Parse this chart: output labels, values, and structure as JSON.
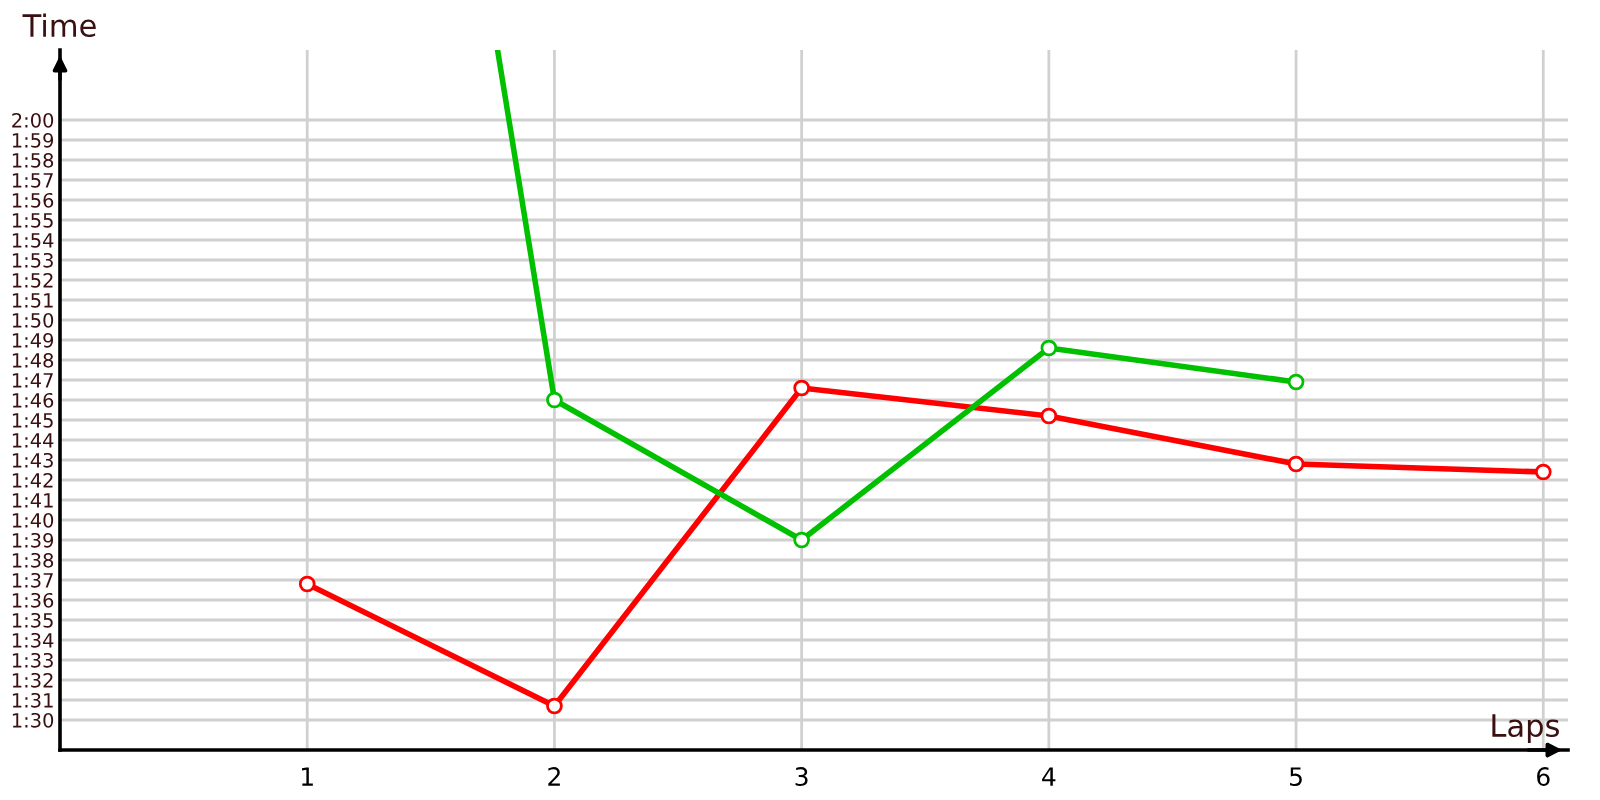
{
  "chart_data": {
    "type": "line",
    "ylabel": "Time",
    "xlabel": "Laps",
    "x": [
      1,
      2,
      3,
      4,
      5,
      6
    ],
    "series": [
      {
        "color": "#ff0000",
        "values": [
          96.8,
          90.7,
          106.6,
          105.2,
          102.8,
          102.4
        ]
      },
      {
        "color": "#00c000",
        "x": [
          1.77,
          2,
          3,
          4,
          5
        ],
        "values": [
          123.5,
          106.0,
          99.0,
          108.6,
          106.9
        ]
      }
    ],
    "xlim": [
      0,
      6.1
    ],
    "ylim": [
      88.5,
      123.5
    ],
    "xticks": [
      1,
      2,
      3,
      4,
      5,
      6
    ],
    "yticks": [
      {
        "value": 90,
        "label": "1:30"
      },
      {
        "value": 91,
        "label": "1:31"
      },
      {
        "value": 92,
        "label": "1:32"
      },
      {
        "value": 93,
        "label": "1:33"
      },
      {
        "value": 94,
        "label": "1:34"
      },
      {
        "value": 95,
        "label": "1:35"
      },
      {
        "value": 96,
        "label": "1:36"
      },
      {
        "value": 97,
        "label": "1:37"
      },
      {
        "value": 98,
        "label": "1:38"
      },
      {
        "value": 99,
        "label": "1:39"
      },
      {
        "value": 100,
        "label": "1:40"
      },
      {
        "value": 101,
        "label": "1:41"
      },
      {
        "value": 102,
        "label": "1:42"
      },
      {
        "value": 103,
        "label": "1:43"
      },
      {
        "value": 104,
        "label": "1:44"
      },
      {
        "value": 105,
        "label": "1:45"
      },
      {
        "value": 106,
        "label": "1:46"
      },
      {
        "value": 107,
        "label": "1:47"
      },
      {
        "value": 108,
        "label": "1:48"
      },
      {
        "value": 109,
        "label": "1:49"
      },
      {
        "value": 110,
        "label": "1:50"
      },
      {
        "value": 111,
        "label": "1:51"
      },
      {
        "value": 112,
        "label": "1:52"
      },
      {
        "value": 113,
        "label": "1:53"
      },
      {
        "value": 114,
        "label": "1:54"
      },
      {
        "value": 115,
        "label": "1:55"
      },
      {
        "value": 116,
        "label": "1:56"
      },
      {
        "value": 117,
        "label": "1:57"
      },
      {
        "value": 118,
        "label": "1:58"
      },
      {
        "value": 119,
        "label": "1:59"
      },
      {
        "value": 120,
        "label": "2:00"
      }
    ],
    "grid": true,
    "marker": "circle",
    "line_style": "solid",
    "legend": false
  }
}
